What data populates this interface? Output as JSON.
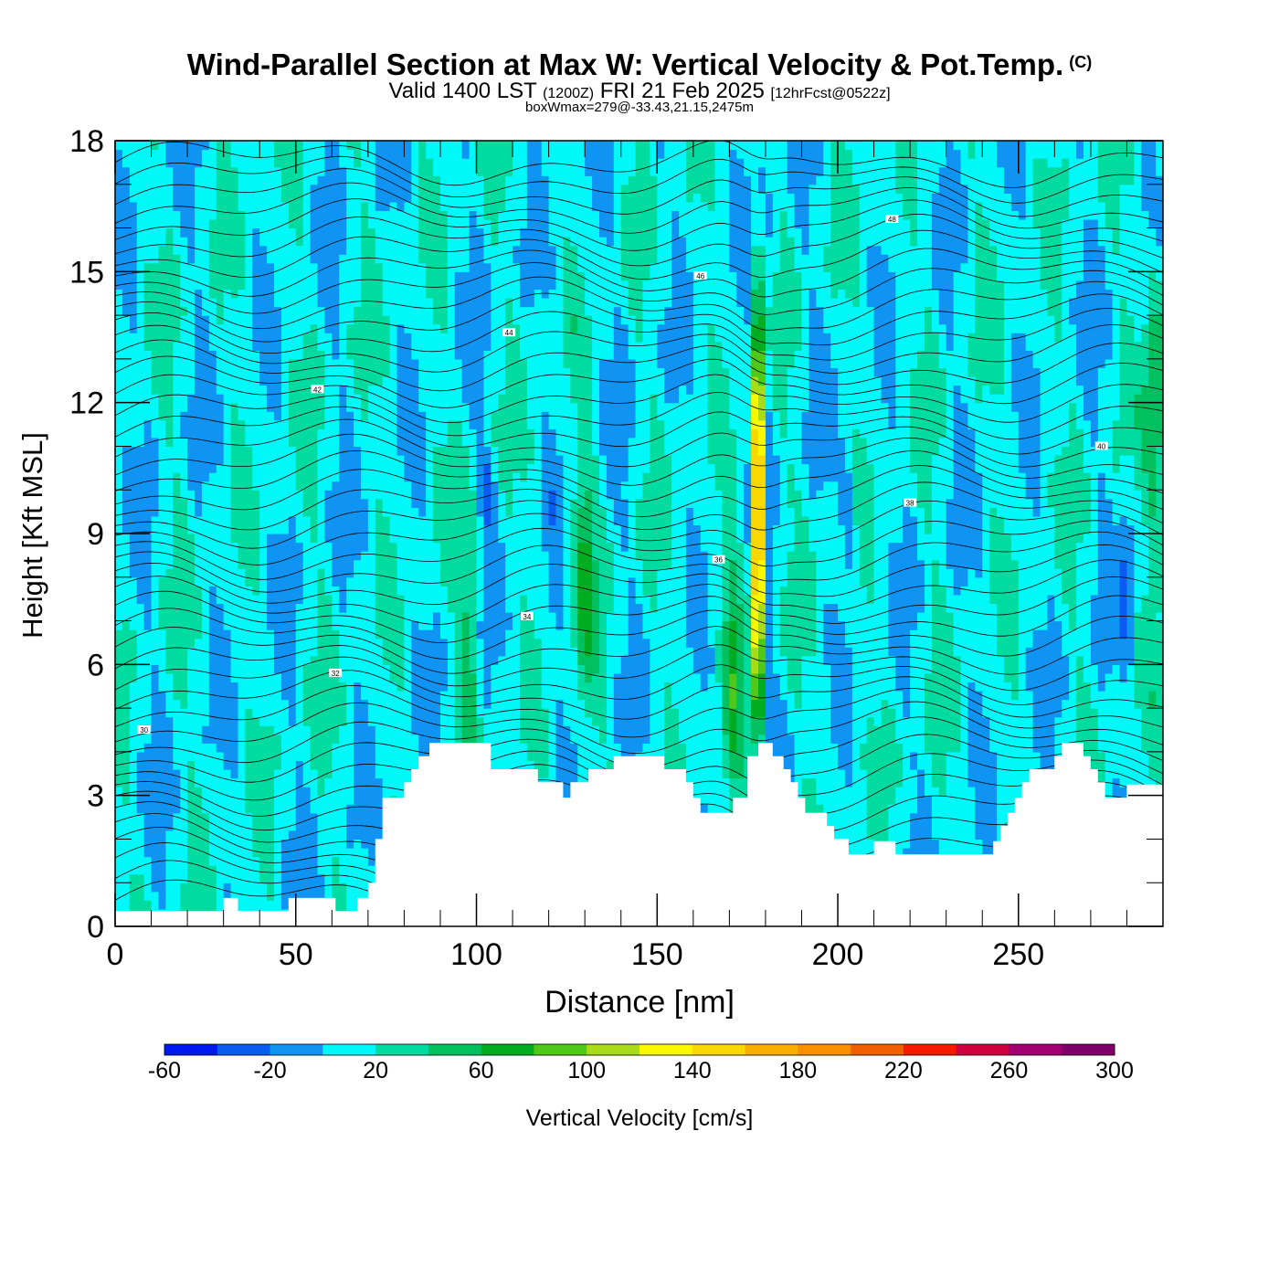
{
  "title": {
    "main": "Wind-Parallel Section at Max W: Vertical Velocity & Pot.Temp.",
    "copyright": "(C)",
    "valid_prefix": "Valid 1400 LST",
    "valid_utc": "(1200Z)",
    "valid_date": "FRI 21 Feb 2025",
    "forecast": "[12hrFcst@0522z]",
    "box_info": "boxWmax=279@-33.43,21.15,2475m"
  },
  "chart_data": {
    "type": "heatmap",
    "xlabel": "Distance [nm]",
    "ylabel": "Height [Kft MSL]",
    "xlim": [
      0,
      290
    ],
    "ylim": [
      0,
      18
    ],
    "x_ticks": [
      "0",
      "50",
      "100",
      "150",
      "200",
      "250"
    ],
    "y_ticks": [
      "0",
      "3",
      "6",
      "9",
      "12",
      "15",
      "18"
    ],
    "colorbar": {
      "label": "Vertical Velocity [cm/s]",
      "tick_labels": [
        "-60",
        "-20",
        "20",
        "60",
        "100",
        "140",
        "180",
        "220",
        "260",
        "300"
      ],
      "levels": [
        -60,
        -40,
        -20,
        0,
        20,
        40,
        60,
        80,
        100,
        120,
        140,
        160,
        180,
        200,
        220,
        240,
        260,
        280,
        300
      ],
      "colors": [
        "#0018f0",
        "#0a5cf0",
        "#0f94f4",
        "#00f8f8",
        "#00dca0",
        "#00c060",
        "#00ac20",
        "#50c818",
        "#a8dc18",
        "#f8f800",
        "#f8d800",
        "#f8b000",
        "#f89000",
        "#f06000",
        "#f81800",
        "#d00040",
        "#a00070",
        "#80006a"
      ]
    },
    "terrain": [
      [
        0,
        0.35
      ],
      [
        30,
        0.35
      ],
      [
        30,
        0.65
      ],
      [
        34,
        0.65
      ],
      [
        34,
        0.35
      ],
      [
        48,
        0.35
      ],
      [
        48,
        0.65
      ],
      [
        61,
        0.65
      ],
      [
        61,
        0.35
      ],
      [
        67,
        0.35
      ],
      [
        67,
        0.65
      ],
      [
        70,
        0.65
      ],
      [
        70,
        1.0
      ],
      [
        72,
        1.0
      ],
      [
        72,
        2.0
      ],
      [
        74,
        2.0
      ],
      [
        74,
        2.95
      ],
      [
        80,
        2.95
      ],
      [
        80,
        3.3
      ],
      [
        82,
        3.3
      ],
      [
        82,
        3.6
      ],
      [
        84,
        3.6
      ],
      [
        84,
        3.9
      ],
      [
        87,
        3.9
      ],
      [
        87,
        4.2
      ],
      [
        104,
        4.2
      ],
      [
        104,
        3.6
      ],
      [
        117,
        3.6
      ],
      [
        117,
        3.3
      ],
      [
        124,
        3.3
      ],
      [
        124,
        2.95
      ],
      [
        126,
        2.95
      ],
      [
        126,
        3.3
      ],
      [
        131,
        3.3
      ],
      [
        131,
        3.6
      ],
      [
        138,
        3.6
      ],
      [
        138,
        3.9
      ],
      [
        152,
        3.9
      ],
      [
        152,
        3.6
      ],
      [
        158,
        3.6
      ],
      [
        158,
        3.3
      ],
      [
        160,
        3.3
      ],
      [
        160,
        2.95
      ],
      [
        162,
        2.95
      ],
      [
        162,
        2.6
      ],
      [
        171,
        2.6
      ],
      [
        171,
        2.95
      ],
      [
        175,
        2.95
      ],
      [
        175,
        3.9
      ],
      [
        178,
        3.9
      ],
      [
        178,
        4.2
      ],
      [
        182,
        4.2
      ],
      [
        182,
        3.9
      ],
      [
        185,
        3.9
      ],
      [
        185,
        3.6
      ],
      [
        187,
        3.6
      ],
      [
        187,
        3.3
      ],
      [
        189,
        3.3
      ],
      [
        189,
        2.95
      ],
      [
        191,
        2.95
      ],
      [
        191,
        2.6
      ],
      [
        197,
        2.6
      ],
      [
        197,
        2.3
      ],
      [
        199,
        2.3
      ],
      [
        199,
        2.0
      ],
      [
        203,
        2.0
      ],
      [
        203,
        1.65
      ],
      [
        210,
        1.65
      ],
      [
        210,
        1.95
      ],
      [
        216,
        1.95
      ],
      [
        216,
        1.65
      ],
      [
        243,
        1.65
      ],
      [
        243,
        1.95
      ],
      [
        245,
        1.95
      ],
      [
        245,
        2.3
      ],
      [
        247,
        2.3
      ],
      [
        247,
        2.6
      ],
      [
        249,
        2.6
      ],
      [
        249,
        2.95
      ],
      [
        251,
        2.95
      ],
      [
        251,
        3.3
      ],
      [
        253,
        3.3
      ],
      [
        253,
        3.6
      ],
      [
        260,
        3.6
      ],
      [
        260,
        3.9
      ],
      [
        262,
        3.9
      ],
      [
        262,
        4.2
      ],
      [
        268,
        4.2
      ],
      [
        268,
        3.9
      ],
      [
        270,
        3.9
      ],
      [
        270,
        3.6
      ],
      [
        272,
        3.6
      ],
      [
        272,
        3.3
      ],
      [
        274,
        3.3
      ],
      [
        274,
        2.95
      ],
      [
        280,
        2.95
      ],
      [
        280,
        3.25
      ],
      [
        290,
        3.25
      ]
    ],
    "isotherm_labels": [
      "30",
      "32",
      "34",
      "36",
      "38",
      "40",
      "42",
      "44",
      "46",
      "48"
    ]
  }
}
